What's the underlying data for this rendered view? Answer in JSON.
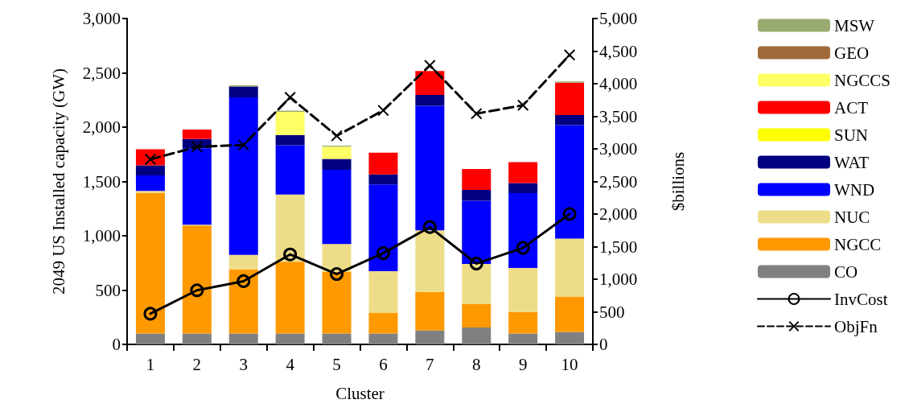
{
  "chart_data": {
    "type": "bar",
    "stacked": true,
    "xlabel": "Cluster",
    "ylabel": "2049 US Installed capacity (GW)",
    "y2label": "$billions",
    "categories": [
      "1",
      "2",
      "3",
      "4",
      "5",
      "6",
      "7",
      "8",
      "9",
      "10"
    ],
    "ylim": [
      0,
      3000
    ],
    "yticks": [
      {
        "value": 0,
        "label": "0"
      },
      {
        "value": 500,
        "label": "500"
      },
      {
        "value": 1000,
        "label": "1,000"
      },
      {
        "value": 1500,
        "label": "1,500"
      },
      {
        "value": 2000,
        "label": "2,000"
      },
      {
        "value": 2500,
        "label": "2,500"
      },
      {
        "value": 3000,
        "label": "3,000"
      }
    ],
    "y2lim": [
      0,
      5000
    ],
    "y2ticks": [
      {
        "value": 0,
        "label": "0"
      },
      {
        "value": 500,
        "label": "500"
      },
      {
        "value": 1000,
        "label": "1,000"
      },
      {
        "value": 1500,
        "label": "1,500"
      },
      {
        "value": 2000,
        "label": "2,000"
      },
      {
        "value": 2500,
        "label": "2,500"
      },
      {
        "value": 3000,
        "label": "3,000"
      },
      {
        "value": 3500,
        "label": "3,500"
      },
      {
        "value": 4000,
        "label": "4,000"
      },
      {
        "value": 4500,
        "label": "4,500"
      },
      {
        "value": 5000,
        "label": "5,000"
      }
    ],
    "grid": false,
    "legend": "right",
    "series": [
      {
        "name": "CO",
        "color": "#808080",
        "values": [
          100,
          100,
          100,
          100,
          100,
          100,
          128,
          156,
          100,
          114
        ]
      },
      {
        "name": "NGCC",
        "color": "#ff9900",
        "values": [
          1293,
          995,
          590,
          661,
          568,
          192,
          356,
          214,
          199,
          327
        ]
      },
      {
        "name": "NUC",
        "color": "#eedd88",
        "values": [
          20,
          7,
          135,
          619,
          256,
          383,
          566,
          370,
          405,
          533
        ]
      },
      {
        "name": "WND",
        "color": "#0000ff",
        "values": [
          142,
          703,
          1450,
          454,
          683,
          797,
          1147,
          583,
          689,
          1045
        ]
      },
      {
        "name": "WAT",
        "color": "#000080",
        "values": [
          93,
          86,
          100,
          93,
          100,
          93,
          100,
          99,
          93,
          93
        ]
      },
      {
        "name": "SUN",
        "color": "#ffff00",
        "values": [
          0,
          0,
          0,
          0,
          0,
          0,
          0,
          0,
          0,
          0
        ]
      },
      {
        "name": "ACT",
        "color": "#ff0000",
        "values": [
          148,
          86,
          0,
          0,
          0,
          199,
          220,
          192,
          192,
          298
        ]
      },
      {
        "name": "NGCCS",
        "color": "#ffff66",
        "values": [
          0,
          0,
          0,
          214,
          113,
          0,
          0,
          0,
          0,
          0
        ]
      },
      {
        "name": "GEO",
        "color": "#a0693a",
        "values": [
          0,
          0,
          0,
          0,
          0,
          0,
          0,
          0,
          0,
          0
        ]
      },
      {
        "name": "MSW",
        "color": "#9aab6f",
        "values": [
          0,
          0,
          10,
          10,
          10,
          0,
          0,
          0,
          0,
          10
        ]
      },
      {
        "name": "InvCost",
        "type": "line",
        "axis": "y2",
        "color": "#000000",
        "marker": "circle",
        "line_style": "solid",
        "values": [
          470,
          830,
          970,
          1380,
          1080,
          1400,
          1800,
          1240,
          1480,
          2000
        ]
      },
      {
        "name": "ObjFn",
        "type": "line",
        "axis": "y2",
        "color": "#000000",
        "marker": "cross",
        "line_style": "dashed",
        "values": [
          2840,
          3030,
          3060,
          3790,
          3200,
          3590,
          4280,
          3540,
          3670,
          4440
        ]
      }
    ]
  }
}
